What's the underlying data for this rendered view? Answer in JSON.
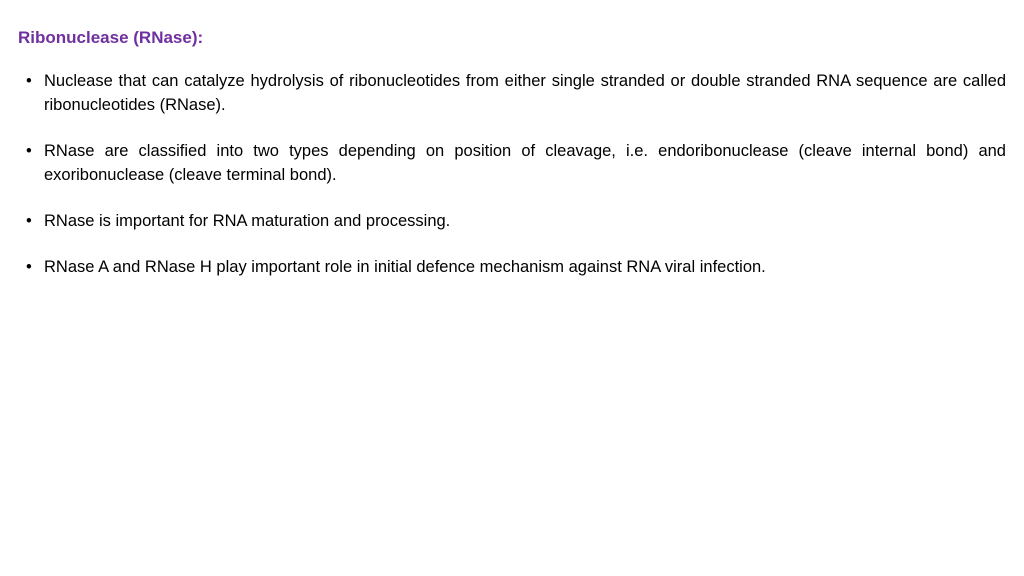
{
  "title": {
    "text": "Ribonuclease (RNase):",
    "color": "#7030a0",
    "fontsize": 17
  },
  "body": {
    "color": "#000000",
    "fontsize": 16.5,
    "bullets": [
      "Nuclease that can catalyze hydrolysis of ribonucleotides from either single stranded or double stranded RNA sequence are called ribonucleotides (RNase).",
      "RNase are classified into two types depending on position of cleavage, i.e. endoribonuclease (cleave internal bond) and exoribonuclease (cleave terminal bond).",
      "RNase is important for RNA maturation and processing.",
      "RNase A and RNase H play important  role in initial defence mechanism  against  RNA viral infection."
    ]
  },
  "background_color": "#ffffff"
}
